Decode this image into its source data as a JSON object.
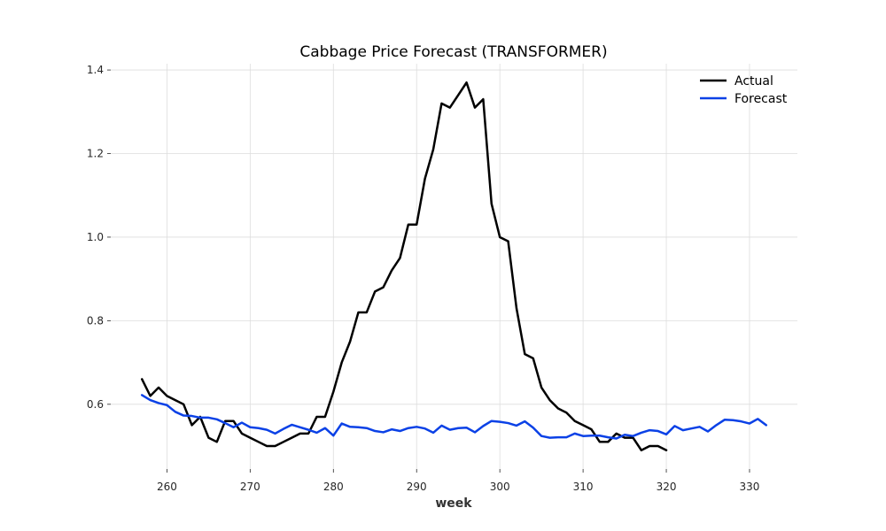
{
  "chart_data": {
    "type": "line",
    "title": "Cabbage Price Forecast (TRANSFORMER)",
    "xlabel": "week",
    "ylabel": "",
    "xlim": [
      253.25,
      335.75
    ],
    "ylim": [
      0.445,
      1.415
    ],
    "xticks": [
      260,
      270,
      280,
      290,
      300,
      310,
      320,
      330
    ],
    "yticks": [
      0.6,
      0.8,
      1.0,
      1.2,
      1.4
    ],
    "ytick_labels": [
      "0.6",
      "0.8",
      "1.0",
      "1.2",
      "1.4"
    ],
    "grid": true,
    "legend_position": "top-right",
    "series": [
      {
        "name": "Actual",
        "color": "#000000",
        "x": [
          257,
          258,
          259,
          260,
          261,
          262,
          263,
          264,
          265,
          266,
          267,
          268,
          269,
          270,
          271,
          272,
          273,
          274,
          275,
          276,
          277,
          278,
          279,
          280,
          281,
          282,
          283,
          284,
          285,
          286,
          287,
          288,
          289,
          290,
          291,
          292,
          293,
          294,
          295,
          296,
          297,
          298,
          299,
          300,
          301,
          302,
          303,
          304,
          305,
          306,
          307,
          308,
          309,
          310,
          311,
          312,
          313,
          314,
          315,
          316,
          317,
          318,
          319,
          320
        ],
        "y": [
          0.66,
          0.62,
          0.64,
          0.62,
          0.61,
          0.6,
          0.55,
          0.57,
          0.52,
          0.51,
          0.56,
          0.56,
          0.53,
          0.52,
          0.51,
          0.5,
          0.5,
          0.51,
          0.52,
          0.53,
          0.53,
          0.57,
          0.57,
          0.63,
          0.7,
          0.75,
          0.82,
          0.82,
          0.87,
          0.88,
          0.92,
          0.95,
          1.03,
          1.03,
          1.14,
          1.21,
          1.32,
          1.31,
          1.34,
          1.37,
          1.31,
          1.33,
          1.08,
          1.0,
          0.99,
          0.83,
          0.72,
          0.71,
          0.64,
          0.61,
          0.59,
          0.58,
          0.56,
          0.55,
          0.54,
          0.51,
          0.51,
          0.53,
          0.52,
          0.52,
          0.49,
          0.5,
          0.5,
          0.49
        ]
      },
      {
        "name": "Forecast",
        "color": "#0b41e6",
        "x": [
          257,
          258,
          259,
          260,
          261,
          262,
          263,
          264,
          265,
          266,
          267,
          268,
          269,
          270,
          271,
          272,
          273,
          274,
          275,
          276,
          277,
          278,
          279,
          280,
          281,
          282,
          283,
          284,
          285,
          286,
          287,
          288,
          289,
          290,
          291,
          292,
          293,
          294,
          295,
          296,
          297,
          298,
          299,
          300,
          301,
          302,
          303,
          304,
          305,
          306,
          307,
          308,
          309,
          310,
          311,
          312,
          313,
          314,
          315,
          316,
          317,
          318,
          319,
          320,
          321,
          322,
          323,
          324,
          325,
          326,
          327,
          328,
          329,
          330,
          331,
          332
        ],
        "y": [
          0.622,
          0.61,
          0.603,
          0.598,
          0.582,
          0.573,
          0.572,
          0.568,
          0.568,
          0.564,
          0.555,
          0.545,
          0.556,
          0.545,
          0.543,
          0.539,
          0.53,
          0.541,
          0.551,
          0.545,
          0.539,
          0.532,
          0.543,
          0.525,
          0.554,
          0.546,
          0.545,
          0.543,
          0.536,
          0.533,
          0.54,
          0.536,
          0.543,
          0.546,
          0.542,
          0.532,
          0.549,
          0.539,
          0.543,
          0.544,
          0.533,
          0.548,
          0.56,
          0.558,
          0.555,
          0.549,
          0.559,
          0.544,
          0.524,
          0.52,
          0.521,
          0.521,
          0.53,
          0.524,
          0.525,
          0.525,
          0.521,
          0.518,
          0.527,
          0.524,
          0.532,
          0.538,
          0.536,
          0.528,
          0.548,
          0.538,
          0.542,
          0.546,
          0.535,
          0.55,
          0.563,
          0.562,
          0.559,
          0.554,
          0.565,
          0.55
        ]
      }
    ]
  }
}
